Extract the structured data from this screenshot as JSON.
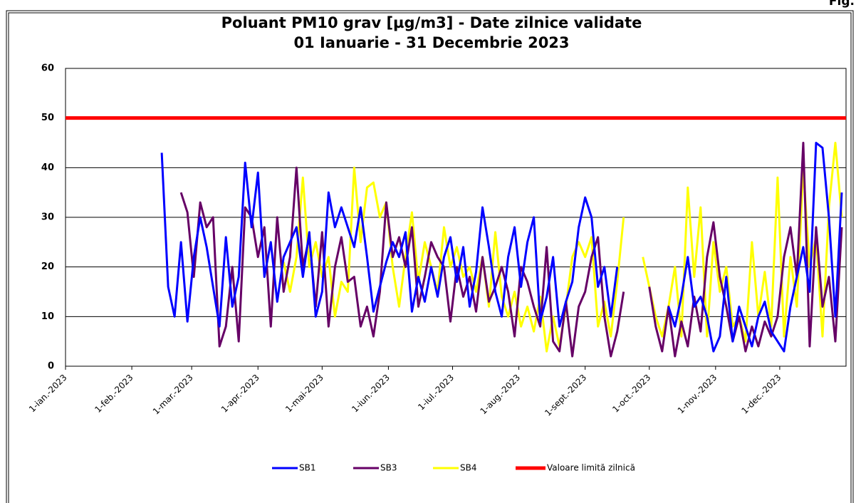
{
  "chart_data": {
    "type": "line",
    "corner_label": "Fig.",
    "title": "Poluant PM10 grav [µg/m3] - Date zilnice validate",
    "subtitle": "01 Ianuarie - 31 Decembrie 2023",
    "xlim": [
      0,
      365
    ],
    "xticks": [
      {
        "value": 0,
        "label": "1-ian.-2023"
      },
      {
        "value": 31,
        "label": "1-feb.-2023"
      },
      {
        "value": 59,
        "label": "1-mar.-2023"
      },
      {
        "value": 90,
        "label": "1-apr.-2023"
      },
      {
        "value": 120,
        "label": "1-mai-2023"
      },
      {
        "value": 151,
        "label": "1-iun.-2023"
      },
      {
        "value": 181,
        "label": "1-iul.-2023"
      },
      {
        "value": 212,
        "label": "1-aug.-2023"
      },
      {
        "value": 243,
        "label": "1-sept.-2023"
      },
      {
        "value": 273,
        "label": "1-oct.-2023"
      },
      {
        "value": 304,
        "label": "1-nov.-2023"
      },
      {
        "value": 334,
        "label": "1-dec.-2023"
      }
    ],
    "ylim": [
      0,
      60
    ],
    "yticks": [
      0,
      10,
      20,
      30,
      40,
      50,
      60
    ],
    "grid": true,
    "x": [
      0,
      3,
      6,
      9,
      12,
      15,
      18,
      21,
      24,
      27,
      30,
      33,
      36,
      39,
      42,
      45,
      48,
      51,
      54,
      57,
      60,
      63,
      66,
      69,
      72,
      75,
      78,
      81,
      84,
      87,
      90,
      93,
      96,
      99,
      102,
      105,
      108,
      111,
      114,
      117,
      120,
      123,
      126,
      129,
      132,
      135,
      138,
      141,
      144,
      147,
      150,
      153,
      156,
      159,
      162,
      165,
      168,
      171,
      174,
      177,
      180,
      183,
      186,
      189,
      192,
      195,
      198,
      201,
      204,
      207,
      210,
      213,
      216,
      219,
      222,
      225,
      228,
      231,
      234,
      237,
      240,
      243,
      246,
      249,
      252,
      255,
      258,
      261,
      264,
      267,
      270,
      273,
      276,
      279,
      282,
      285,
      288,
      291,
      294,
      297,
      300,
      303,
      306,
      309,
      312,
      315,
      318,
      321,
      324,
      327,
      330,
      333,
      336,
      339,
      342,
      345,
      348,
      351,
      354,
      357,
      360,
      363
    ],
    "series": [
      {
        "name": "SB1",
        "color": "#0000ff",
        "values": [
          null,
          null,
          null,
          null,
          null,
          null,
          null,
          null,
          null,
          null,
          null,
          null,
          null,
          null,
          null,
          43,
          16,
          10,
          25,
          9,
          22,
          30,
          24,
          16,
          8,
          26,
          12,
          18,
          41,
          28,
          39,
          18,
          25,
          13,
          22,
          25,
          28,
          18,
          27,
          10,
          15,
          35,
          28,
          32,
          28,
          24,
          32,
          22,
          11,
          16,
          21,
          25,
          22,
          27,
          11,
          18,
          13,
          20,
          14,
          22,
          26,
          17,
          24,
          12,
          19,
          32,
          24,
          15,
          10,
          22,
          28,
          16,
          25,
          30,
          9,
          14,
          22,
          8,
          13,
          17,
          28,
          34,
          30,
          16,
          20,
          10,
          20,
          null,
          null,
          null,
          null,
          null,
          null,
          null,
          12,
          8,
          14,
          22,
          12,
          14,
          10,
          3,
          6,
          18,
          5,
          12,
          8,
          4,
          10,
          13,
          7,
          5,
          3,
          12,
          18,
          24,
          15,
          45,
          44,
          30,
          10,
          35
        ]
      },
      {
        "name": "SB3",
        "color": "#660066",
        "values": [
          null,
          null,
          null,
          null,
          null,
          null,
          null,
          null,
          null,
          null,
          null,
          null,
          null,
          null,
          null,
          null,
          null,
          null,
          35,
          31,
          18,
          33,
          28,
          30,
          4,
          8,
          20,
          5,
          32,
          30,
          22,
          28,
          8,
          30,
          15,
          22,
          40,
          20,
          26,
          12,
          27,
          8,
          20,
          26,
          17,
          18,
          8,
          12,
          6,
          15,
          33,
          22,
          26,
          20,
          28,
          12,
          18,
          25,
          22,
          20,
          9,
          20,
          14,
          18,
          11,
          22,
          13,
          16,
          20,
          15,
          6,
          20,
          17,
          12,
          8,
          24,
          5,
          3,
          13,
          2,
          12,
          15,
          22,
          26,
          10,
          2,
          7,
          15,
          null,
          null,
          null,
          16,
          8,
          3,
          12,
          2,
          9,
          4,
          14,
          7,
          22,
          29,
          18,
          12,
          5,
          10,
          3,
          8,
          4,
          9,
          6,
          10,
          22,
          28,
          18,
          45,
          4,
          28,
          12,
          18,
          5,
          28
        ]
      },
      {
        "name": "SB4",
        "color": "#ffff00",
        "values": [
          null,
          null,
          null,
          null,
          null,
          null,
          null,
          null,
          null,
          null,
          null,
          null,
          null,
          null,
          null,
          null,
          null,
          null,
          null,
          null,
          null,
          null,
          null,
          null,
          null,
          null,
          null,
          null,
          null,
          null,
          null,
          null,
          null,
          null,
          21,
          15,
          22,
          38,
          20,
          25,
          18,
          22,
          10,
          17,
          15,
          40,
          25,
          36,
          37,
          30,
          33,
          20,
          12,
          22,
          31,
          17,
          25,
          20,
          15,
          28,
          20,
          24,
          18,
          20,
          15,
          22,
          12,
          27,
          14,
          10,
          15,
          8,
          12,
          7,
          14,
          3,
          10,
          4,
          12,
          22,
          25,
          22,
          26,
          8,
          13,
          6,
          17,
          30,
          null,
          null,
          22,
          16,
          10,
          6,
          12,
          20,
          6,
          36,
          18,
          32,
          6,
          25,
          15,
          20,
          8,
          10,
          5,
          25,
          10,
          19,
          8,
          38,
          6,
          22,
          12,
          40,
          20,
          26,
          6,
          32,
          45,
          30
        ]
      },
      {
        "name": "Valoare limită zilnică",
        "color": "#ff0000",
        "x": [
          0,
          365
        ],
        "values": [
          50,
          50
        ]
      }
    ]
  }
}
